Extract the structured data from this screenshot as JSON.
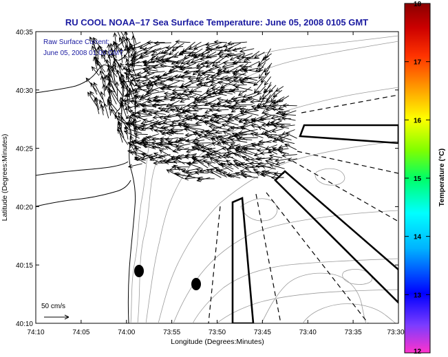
{
  "title": "RU COOL   NOAA–17  Sea Surface Temperature:  June 05, 2008 0105 GMT",
  "subtitle_line1": "Raw Surface Current:",
  "subtitle_line2": "June 05, 2008 01:00 GMT",
  "axes": {
    "xlabel": "Longitude (Degrees:Minutes)",
    "ylabel": "Latitude (Degrees:Minutes)",
    "x_ticks": [
      "74:10",
      "74:05",
      "74:00",
      "73:55",
      "73:50",
      "73:45",
      "73:40",
      "73:35",
      "73:30"
    ],
    "y_ticks": [
      "40:35",
      "40:30",
      "40:25",
      "40:20",
      "40:15",
      "40:10"
    ]
  },
  "colorbar": {
    "label": "Temperature (°C)",
    "ticks": [
      "18",
      "17",
      "16",
      "15",
      "14",
      "13",
      "12"
    ],
    "min": 12,
    "max": 18,
    "colors": [
      "#ff33cc",
      "#7a3cff",
      "#0000ff",
      "#00b4ff",
      "#00ffff",
      "#00ff66",
      "#80ff00",
      "#ffff00",
      "#ffa500",
      "#ff3300",
      "#cc0000",
      "#8b0000"
    ]
  },
  "scale_bar": {
    "label": "50 cm/s"
  },
  "icons": {
    "current_arrow": "current-vector-icon",
    "station": "station-dot-icon"
  }
}
